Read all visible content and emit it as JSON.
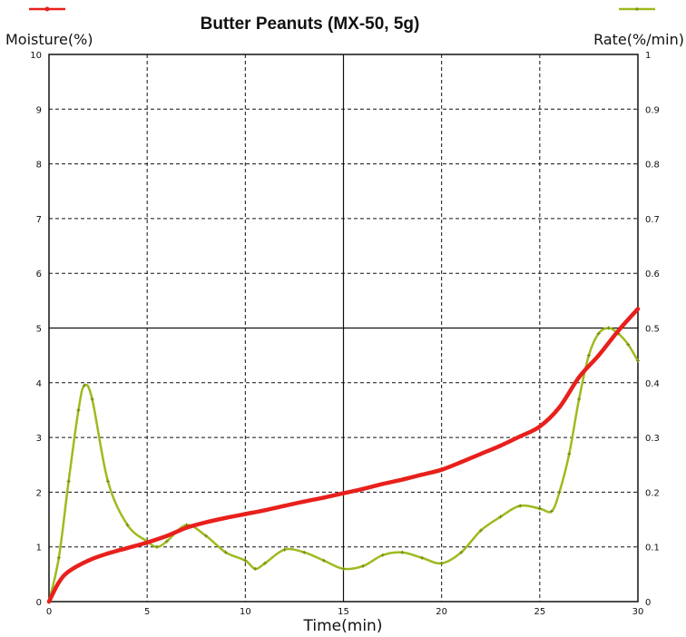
{
  "chart_data": {
    "type": "line",
    "title": "Butter Peanuts (MX-50, 5g)",
    "xlabel": "Time(min)",
    "ylabel_left": "Moisture(%)",
    "ylabel_right": "Rate(%/min)",
    "xlim": [
      0,
      30
    ],
    "ylim_left": [
      0,
      10
    ],
    "ylim_right": [
      0,
      1
    ],
    "x_ticks": [
      "0",
      "5",
      "10",
      "15",
      "20",
      "25",
      "30"
    ],
    "y_left_ticks": [
      "0",
      "1",
      "2",
      "3",
      "4",
      "5",
      "6",
      "7",
      "8",
      "9",
      "10"
    ],
    "y_right_ticks": [
      "0",
      "0.1",
      "0.2",
      "0.3",
      "0.4",
      "0.5",
      "0.6",
      "0.7",
      "0.8",
      "0.9",
      "1"
    ],
    "grid": true,
    "colors": {
      "moisture": "#e8201c",
      "rate": "#9dbb1e",
      "grid": "#111111"
    },
    "series": [
      {
        "axis": "left",
        "x": [
          0,
          0.5,
          1,
          2,
          3,
          4,
          5,
          6,
          7,
          8,
          9,
          10,
          11,
          12,
          13,
          14,
          15,
          16,
          17,
          18,
          19,
          20,
          21,
          22,
          23,
          24,
          25,
          26,
          27,
          28,
          29,
          30
        ],
        "values": [
          0,
          0.35,
          0.55,
          0.75,
          0.88,
          0.98,
          1.08,
          1.2,
          1.35,
          1.45,
          1.53,
          1.6,
          1.67,
          1.75,
          1.83,
          1.9,
          1.98,
          2.06,
          2.15,
          2.23,
          2.32,
          2.41,
          2.55,
          2.7,
          2.85,
          3.02,
          3.2,
          3.55,
          4.1,
          4.5,
          4.95,
          5.35
        ]
      },
      {
        "axis": "right",
        "x": [
          0,
          0.5,
          1,
          1.5,
          1.8,
          2.2,
          3,
          4,
          5,
          5.5,
          6,
          7,
          8,
          9,
          10,
          10.5,
          11,
          12,
          13,
          14,
          15,
          16,
          17,
          18,
          19,
          20,
          21,
          22,
          23,
          24,
          25,
          25.6,
          26,
          26.5,
          27,
          27.5,
          28,
          28.5,
          29,
          29.5,
          30
        ],
        "values": [
          0,
          0.08,
          0.22,
          0.35,
          0.395,
          0.37,
          0.22,
          0.14,
          0.11,
          0.1,
          0.11,
          0.14,
          0.12,
          0.09,
          0.075,
          0.06,
          0.07,
          0.095,
          0.09,
          0.075,
          0.06,
          0.065,
          0.085,
          0.09,
          0.08,
          0.07,
          0.09,
          0.13,
          0.155,
          0.175,
          0.17,
          0.165,
          0.2,
          0.27,
          0.37,
          0.45,
          0.49,
          0.5,
          0.49,
          0.47,
          0.44
        ]
      }
    ]
  }
}
